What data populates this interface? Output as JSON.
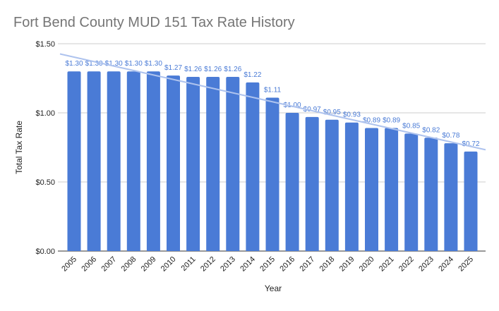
{
  "chart_data": {
    "type": "bar",
    "title": "Fort Bend County MUD 151 Tax Rate History",
    "xlabel": "Year",
    "ylabel": "Total Tax Rate",
    "categories": [
      "2005",
      "2006",
      "2007",
      "2008",
      "2009",
      "2010",
      "2011",
      "2012",
      "2013",
      "2014",
      "2015",
      "2016",
      "2017",
      "2018",
      "2019",
      "2020",
      "2021",
      "2022",
      "2023",
      "2024",
      "2025"
    ],
    "values": [
      1.3,
      1.3,
      1.3,
      1.3,
      1.3,
      1.27,
      1.26,
      1.26,
      1.26,
      1.22,
      1.11,
      1.0,
      0.97,
      0.95,
      0.93,
      0.89,
      0.89,
      0.85,
      0.82,
      0.78,
      0.72
    ],
    "data_labels": [
      "$1.30",
      "$1.30",
      "$1.30",
      "$1.30",
      "$1.30",
      "$1.27",
      "$1.26",
      "$1.26",
      "$1.26",
      "$1.22",
      "$1.11",
      "$1.00",
      "$0.97",
      "$0.95",
      "$0.93",
      "$0.89",
      "$0.89",
      "$0.85",
      "$0.82",
      "$0.78",
      "$0.72"
    ],
    "yticks": [
      0,
      0.5,
      1.0,
      1.5
    ],
    "ytick_labels": [
      "$0.00",
      "$0.50",
      "$1.00",
      "$1.50"
    ],
    "ylim": [
      0,
      1.5
    ],
    "grid": true,
    "trendline": "linear",
    "colors": {
      "bar": "#4a7bd6",
      "label": "#4a7bd6",
      "trendline": "#aec3ee",
      "grid": "#cccccc",
      "title": "#757575"
    }
  }
}
